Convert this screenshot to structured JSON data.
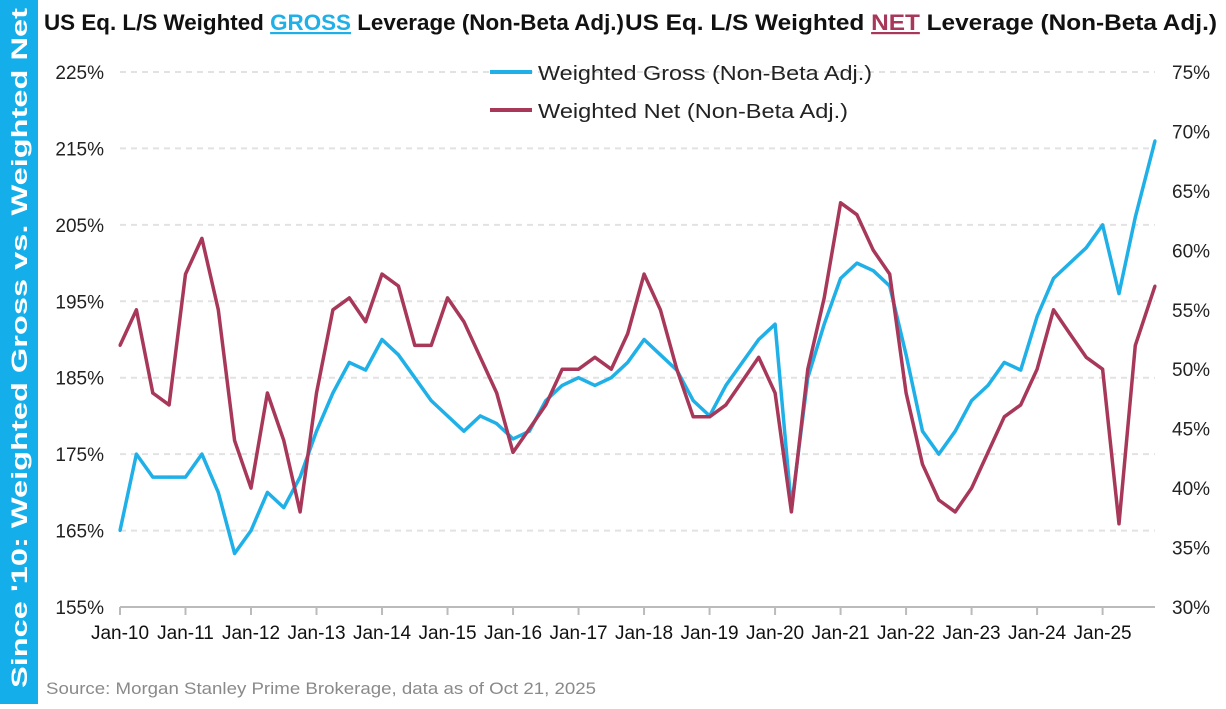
{
  "side_label": "Since '10: Weighted Gross vs. Weighted Net",
  "title": {
    "left_prefix": "US Eq. L/S Weighted ",
    "left_highlight": "GROSS",
    "left_suffix": " Leverage (Non-Beta Adj.)",
    "right_prefix": "US Eq. L/S Weighted ",
    "right_highlight": "NET",
    "right_suffix": " Leverage (Non-Beta Adj.)"
  },
  "source": "Source: Morgan Stanley Prime Brokerage, data as of Oct 21, 2025",
  "colors": {
    "gross": "#1fb0e8",
    "net": "#a8385a",
    "side": "#14aeea"
  },
  "chart_data": {
    "type": "line",
    "x_ticks": [
      "Jan-10",
      "Jan-11",
      "Jan-12",
      "Jan-13",
      "Jan-14",
      "Jan-15",
      "Jan-16",
      "Jan-17",
      "Jan-18",
      "Jan-19",
      "Jan-20",
      "Jan-21",
      "Jan-22",
      "Jan-23",
      "Jan-24",
      "Jan-25"
    ],
    "x_start": 2010.0,
    "x_end": 2025.8,
    "y_left": {
      "range": [
        155,
        225
      ],
      "ticks": [
        "155%",
        "165%",
        "175%",
        "185%",
        "195%",
        "205%",
        "215%",
        "225%"
      ]
    },
    "y_right": {
      "range": [
        30,
        75
      ],
      "ticks": [
        "30%",
        "35%",
        "40%",
        "45%",
        "50%",
        "55%",
        "60%",
        "65%",
        "70%",
        "75%"
      ]
    },
    "grid": "horizontal dashed",
    "legend_position": "top-center",
    "x": [
      2010.0,
      2010.25,
      2010.5,
      2010.75,
      2011.0,
      2011.25,
      2011.5,
      2011.75,
      2012.0,
      2012.25,
      2012.5,
      2012.75,
      2013.0,
      2013.25,
      2013.5,
      2013.75,
      2014.0,
      2014.25,
      2014.5,
      2014.75,
      2015.0,
      2015.25,
      2015.5,
      2015.75,
      2016.0,
      2016.25,
      2016.5,
      2016.75,
      2017.0,
      2017.25,
      2017.5,
      2017.75,
      2018.0,
      2018.25,
      2018.5,
      2018.75,
      2019.0,
      2019.25,
      2019.5,
      2019.75,
      2020.0,
      2020.25,
      2020.5,
      2020.75,
      2021.0,
      2021.25,
      2021.5,
      2021.75,
      2022.0,
      2022.25,
      2022.5,
      2022.75,
      2023.0,
      2023.25,
      2023.5,
      2023.75,
      2024.0,
      2024.25,
      2024.5,
      2024.75,
      2025.0,
      2025.25,
      2025.5,
      2025.8
    ],
    "series": [
      {
        "name": "Weighted Gross (Non-Beta Adj.)",
        "axis": "left",
        "values": [
          165,
          175,
          172,
          172,
          172,
          175,
          170,
          162,
          165,
          170,
          168,
          172,
          178,
          183,
          187,
          186,
          190,
          188,
          185,
          182,
          180,
          178,
          180,
          179,
          177,
          178,
          182,
          184,
          185,
          184,
          185,
          187,
          190,
          188,
          186,
          182,
          180,
          184,
          187,
          190,
          192,
          168,
          185,
          192,
          198,
          200,
          199,
          197,
          188,
          178,
          175,
          178,
          182,
          184,
          187,
          186,
          193,
          198,
          200,
          202,
          205,
          196,
          206,
          216
        ]
      },
      {
        "name": "Weighted Net (Non-Beta Adj.)",
        "axis": "right",
        "values": [
          52,
          55,
          48,
          47,
          58,
          61,
          55,
          44,
          40,
          48,
          44,
          38,
          48,
          55,
          56,
          54,
          58,
          57,
          52,
          52,
          56,
          54,
          51,
          48,
          43,
          45,
          47,
          50,
          50,
          51,
          50,
          53,
          58,
          55,
          50,
          46,
          46,
          47,
          49,
          51,
          48,
          38,
          50,
          56,
          64,
          63,
          60,
          58,
          48,
          42,
          39,
          38,
          40,
          43,
          46,
          47,
          50,
          55,
          53,
          51,
          50,
          37,
          52,
          57
        ]
      }
    ]
  }
}
